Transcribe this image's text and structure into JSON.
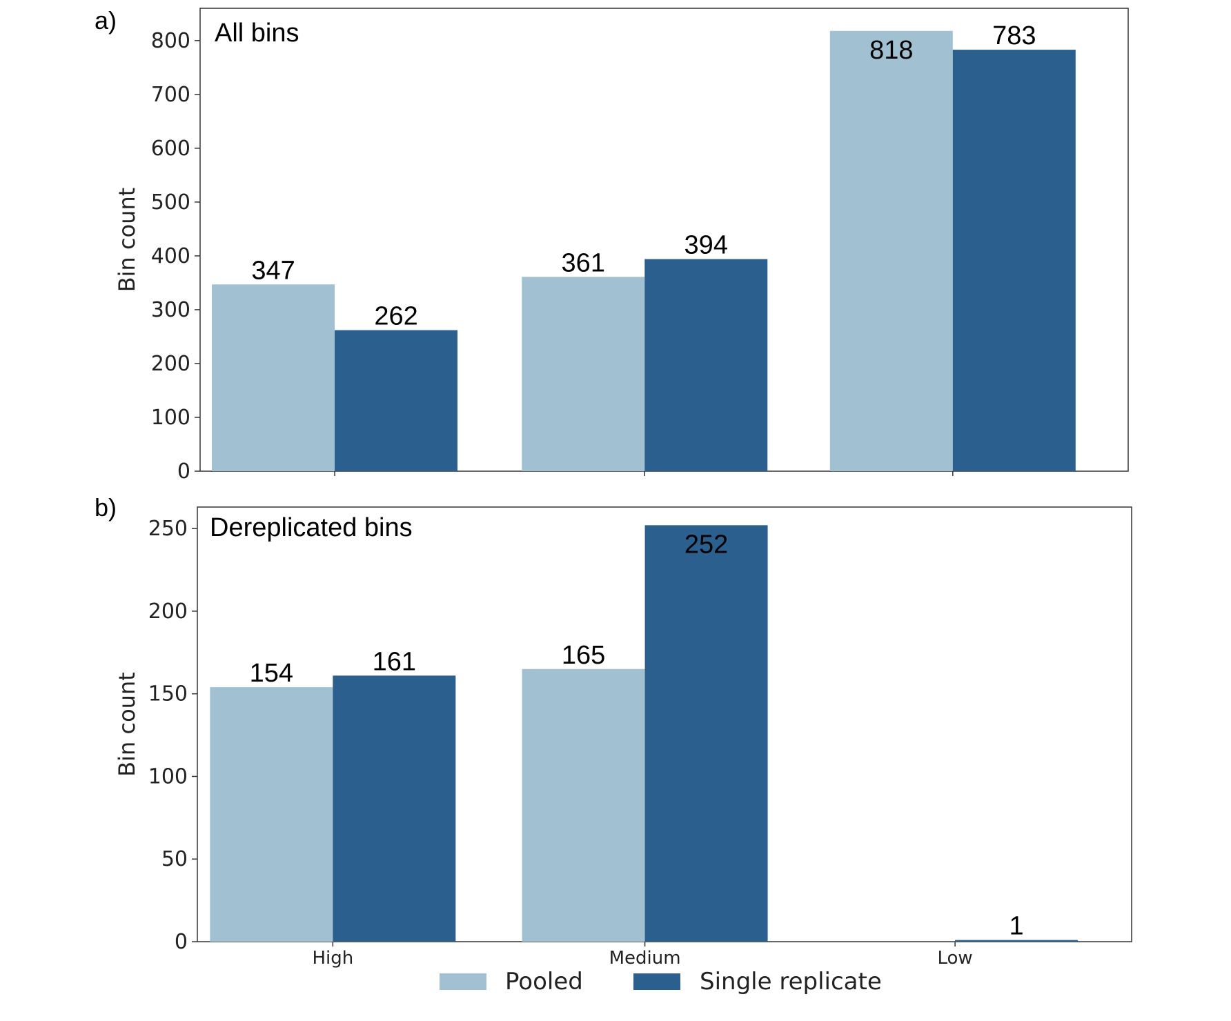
{
  "figure": {
    "legend": {
      "placement": "bottom-center",
      "items": [
        {
          "label": "Pooled",
          "color": "#a1c1d3"
        },
        {
          "label": "Single replicate",
          "color": "#2a5f8e"
        }
      ]
    }
  },
  "chart_data": [
    {
      "type": "bar",
      "panel": "a)",
      "title": "All bins",
      "ylabel": "Bin count",
      "xlabel": "",
      "categories": [
        "High",
        "Medium",
        "Low"
      ],
      "show_category_labels": false,
      "ylim": [
        0,
        860
      ],
      "yticks": [
        0,
        100,
        200,
        300,
        400,
        500,
        600,
        700,
        800
      ],
      "series": [
        {
          "name": "Pooled",
          "color": "#a1c1d3",
          "values": [
            347,
            361,
            818
          ]
        },
        {
          "name": "Single replicate",
          "color": "#2a5f8e",
          "values": [
            262,
            394,
            783
          ]
        }
      ],
      "data_labels": [
        [
          "347",
          "361",
          "818"
        ],
        [
          "262",
          "394",
          "783"
        ]
      ],
      "label_inside": [
        [
          false,
          false,
          true
        ],
        [
          false,
          false,
          false
        ]
      ]
    },
    {
      "type": "bar",
      "panel": "b)",
      "title": "Dereplicated bins",
      "ylabel": "Bin count",
      "xlabel": "",
      "categories": [
        "High",
        "Medium",
        "Low"
      ],
      "show_category_labels": true,
      "ylim": [
        0,
        263
      ],
      "yticks": [
        0,
        50,
        100,
        150,
        200,
        250
      ],
      "series": [
        {
          "name": "Pooled",
          "color": "#a1c1d3",
          "values": [
            154,
            165,
            0
          ]
        },
        {
          "name": "Single replicate",
          "color": "#2a5f8e",
          "values": [
            161,
            252,
            1
          ]
        }
      ],
      "data_labels": [
        [
          "154",
          "165",
          ""
        ],
        [
          "161",
          "252",
          "1"
        ]
      ],
      "label_inside": [
        [
          false,
          false,
          false
        ],
        [
          false,
          true,
          false
        ]
      ]
    }
  ]
}
